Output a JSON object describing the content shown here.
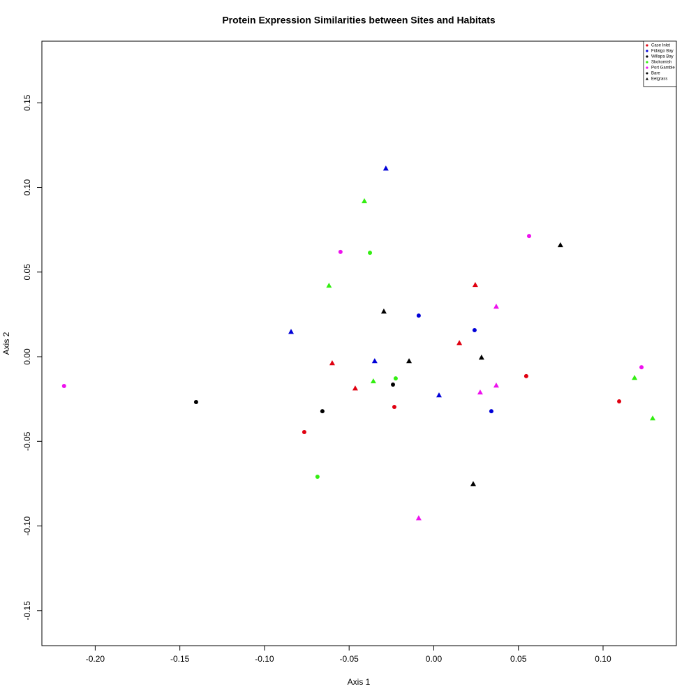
{
  "chart_data": {
    "type": "scatter",
    "title": "Protein Expression Similarities between Sites and Habitats",
    "x_label": "Axis 1",
    "y_label": "Axis 2",
    "xlim": [
      -0.2315,
      0.1433
    ],
    "ylim": [
      -0.1707,
      0.1864
    ],
    "xticks": [
      {
        "value": -0.2,
        "label": "-0.20"
      },
      {
        "value": -0.15,
        "label": "-0.15"
      },
      {
        "value": -0.1,
        "label": "-0.10"
      },
      {
        "value": -0.05,
        "label": "-0.05"
      },
      {
        "value": 0,
        "label": "0.00"
      },
      {
        "value": 0.05,
        "label": "0.05"
      },
      {
        "value": 0.1,
        "label": "0.10"
      }
    ],
    "yticks": [
      {
        "value": -0.15,
        "label": "-0.15"
      },
      {
        "value": -0.1,
        "label": "-0.10"
      },
      {
        "value": -0.05,
        "label": "-0.05"
      },
      {
        "value": 0,
        "label": "0.00"
      },
      {
        "value": 0.05,
        "label": "0.05"
      },
      {
        "value": 0.1,
        "label": "0.10"
      },
      {
        "value": 0.15,
        "label": "0.15"
      }
    ],
    "legend_position": "top-right",
    "habitats": [
      {
        "name": "Bare",
        "shape": "circle"
      },
      {
        "name": "Eelgrass",
        "shape": "triangle"
      }
    ],
    "series": [
      {
        "name": "Case Inlet",
        "color": "#e00010",
        "x": [
          -0.0765,
          -0.0233,
          0.0546,
          0.1095,
          0.0245,
          0.0151,
          -0.06,
          -0.0464
        ],
        "y": [
          -0.0445,
          -0.0297,
          -0.0115,
          -0.0264,
          0.0425,
          0.0082,
          -0.0037,
          -0.0186
        ],
        "shape": [
          "circle",
          "circle",
          "circle",
          "circle",
          "triangle",
          "triangle",
          "triangle",
          "triangle"
        ]
      },
      {
        "name": "Fidalgo Bay",
        "color": "#0000d8",
        "x": [
          -0.0089,
          0.0241,
          0.034,
          -0.0283,
          -0.0843,
          -0.0349,
          0.0031
        ],
        "y": [
          0.0243,
          0.0157,
          -0.0322,
          0.1113,
          0.0148,
          -0.0025,
          -0.0227
        ],
        "shape": [
          "circle",
          "circle",
          "circle",
          "triangle",
          "triangle",
          "triangle",
          "triangle"
        ]
      },
      {
        "name": "Willapa Bay",
        "color": "#000000",
        "x": [
          -0.1404,
          -0.0658,
          -0.0241,
          0.0748,
          -0.0295,
          -0.0146,
          0.0282,
          0.0233
        ],
        "y": [
          -0.0268,
          -0.0322,
          -0.0165,
          0.066,
          0.0268,
          -0.0025,
          -0.0004,
          -0.0751
        ],
        "shape": [
          "circle",
          "circle",
          "circle",
          "triangle",
          "triangle",
          "triangle",
          "triangle",
          "triangle"
        ]
      },
      {
        "name": "Skokomish",
        "color": "#33ee11",
        "x": [
          -0.0377,
          -0.0225,
          -0.0687,
          0.1186,
          -0.041,
          -0.0619,
          -0.0357,
          0.1293
        ],
        "y": [
          0.0614,
          -0.0128,
          -0.0709,
          -0.0124,
          0.092,
          0.0421,
          -0.0144,
          -0.0363
        ],
        "shape": [
          "circle",
          "circle",
          "circle",
          "triangle",
          "triangle",
          "triangle",
          "triangle",
          "triangle"
        ]
      },
      {
        "name": "Port Gamble",
        "color": "#ee11ee",
        "x": [
          -0.2184,
          -0.0551,
          0.0563,
          0.1227,
          0.0369,
          0.0369,
          0.0274,
          -0.0089
        ],
        "y": [
          -0.0173,
          0.0619,
          0.0713,
          -0.0062,
          0.0297,
          -0.0169,
          -0.021,
          -0.0953
        ],
        "shape": [
          "circle",
          "circle",
          "circle",
          "circle",
          "triangle",
          "triangle",
          "triangle",
          "triangle"
        ]
      }
    ]
  }
}
